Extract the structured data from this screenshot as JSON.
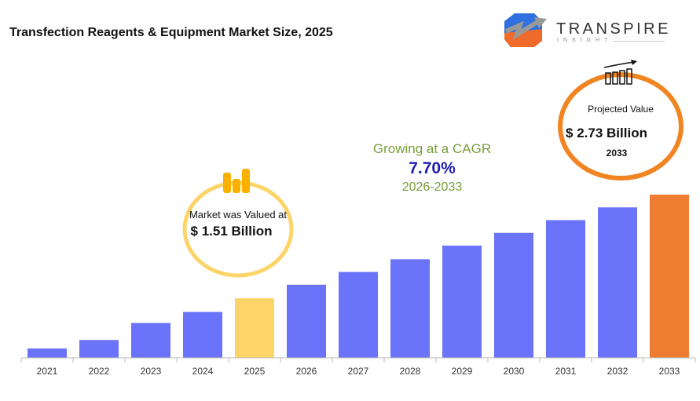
{
  "title": "Transfection Reagents & Equipment Market Size, 2025",
  "logo": {
    "name": "TRANSPIRE",
    "subtitle": "INSIGHT"
  },
  "cagr": {
    "label": "Growing at a CAGR",
    "value": "7.70%",
    "period": "2026-2033"
  },
  "callout_start": {
    "label": "Market was Valued at",
    "value": "$ 1.51 Billion",
    "icon": "coin-stacks-icon",
    "color": "#fdd468"
  },
  "callout_end": {
    "label": "Projected Value",
    "value": "$ 2.73 Billion",
    "year": "2033",
    "icon": "bar-growth-icon",
    "color": "#f08522"
  },
  "chart_data": {
    "type": "bar",
    "categories": [
      "2021",
      "2022",
      "2023",
      "2024",
      "2025",
      "2026",
      "2027",
      "2028",
      "2029",
      "2030",
      "2031",
      "2032",
      "2033"
    ],
    "values": [
      0.92,
      1.02,
      1.22,
      1.35,
      1.51,
      1.67,
      1.82,
      1.97,
      2.13,
      2.28,
      2.43,
      2.58,
      2.73
    ],
    "unit": "USD Billion",
    "colors": {
      "default": "#6b73fb",
      "highlight_2025": "#fdd468",
      "highlight_2033": "#ee7d31"
    },
    "ylim": [
      0.81,
      2.73
    ],
    "grid": false,
    "title": "",
    "xlabel": "",
    "ylabel": ""
  }
}
